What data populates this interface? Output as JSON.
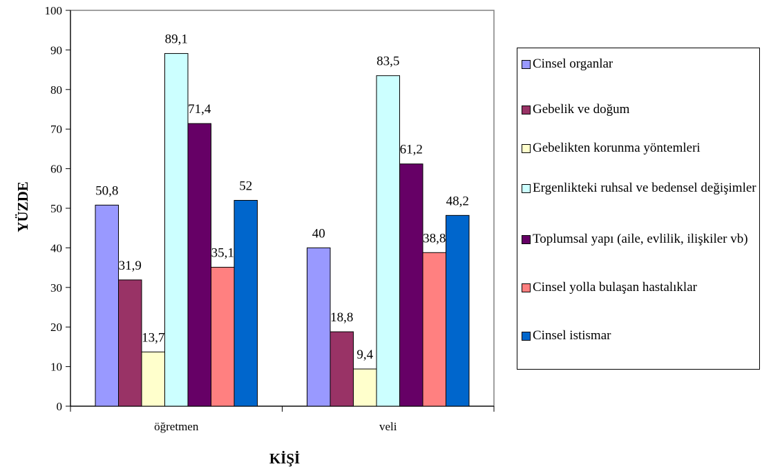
{
  "chart_data": {
    "type": "bar",
    "xlabel": "KİŞİ",
    "ylabel": "YÜZDE",
    "ylim": [
      0,
      100
    ],
    "yticks": [
      "0",
      "10",
      "20",
      "30",
      "40",
      "50",
      "60",
      "70",
      "80",
      "90",
      "100"
    ],
    "categories": [
      "öğretmen",
      "veli"
    ],
    "series": [
      {
        "name": "Cinsel organlar",
        "color": "#9999ff",
        "values": [
          50.8,
          40
        ],
        "labels": [
          "50,8",
          "40"
        ]
      },
      {
        "name": "Gebelik ve doğum",
        "color": "#993366",
        "values": [
          31.9,
          18.8
        ],
        "labels": [
          "31,9",
          "18,8"
        ]
      },
      {
        "name": "Gebelikten korunma yöntemleri",
        "color": "#ffffcc",
        "values": [
          13.7,
          9.4
        ],
        "labels": [
          "13,7",
          "9,4"
        ]
      },
      {
        "name": "Ergenlikteki ruhsal ve bedensel değişimler",
        "color": "#ccffff",
        "values": [
          89.1,
          83.5
        ],
        "labels": [
          "89,1",
          "83,5"
        ]
      },
      {
        "name": "Toplumsal yapı (aile, evlilik, ilişkiler vb)",
        "color": "#660066",
        "values": [
          71.4,
          61.2
        ],
        "labels": [
          "71,4",
          "61,2"
        ]
      },
      {
        "name": "Cinsel yolla bulaşan hastalıklar",
        "color": "#ff8080",
        "values": [
          35.1,
          38.8
        ],
        "labels": [
          "35,1",
          "38,8"
        ]
      },
      {
        "name": "Cinsel istismar",
        "color": "#0066cc",
        "values": [
          52,
          48.2
        ],
        "labels": [
          "52",
          "48,2"
        ]
      }
    ],
    "legend_position": "right",
    "grid": false
  }
}
